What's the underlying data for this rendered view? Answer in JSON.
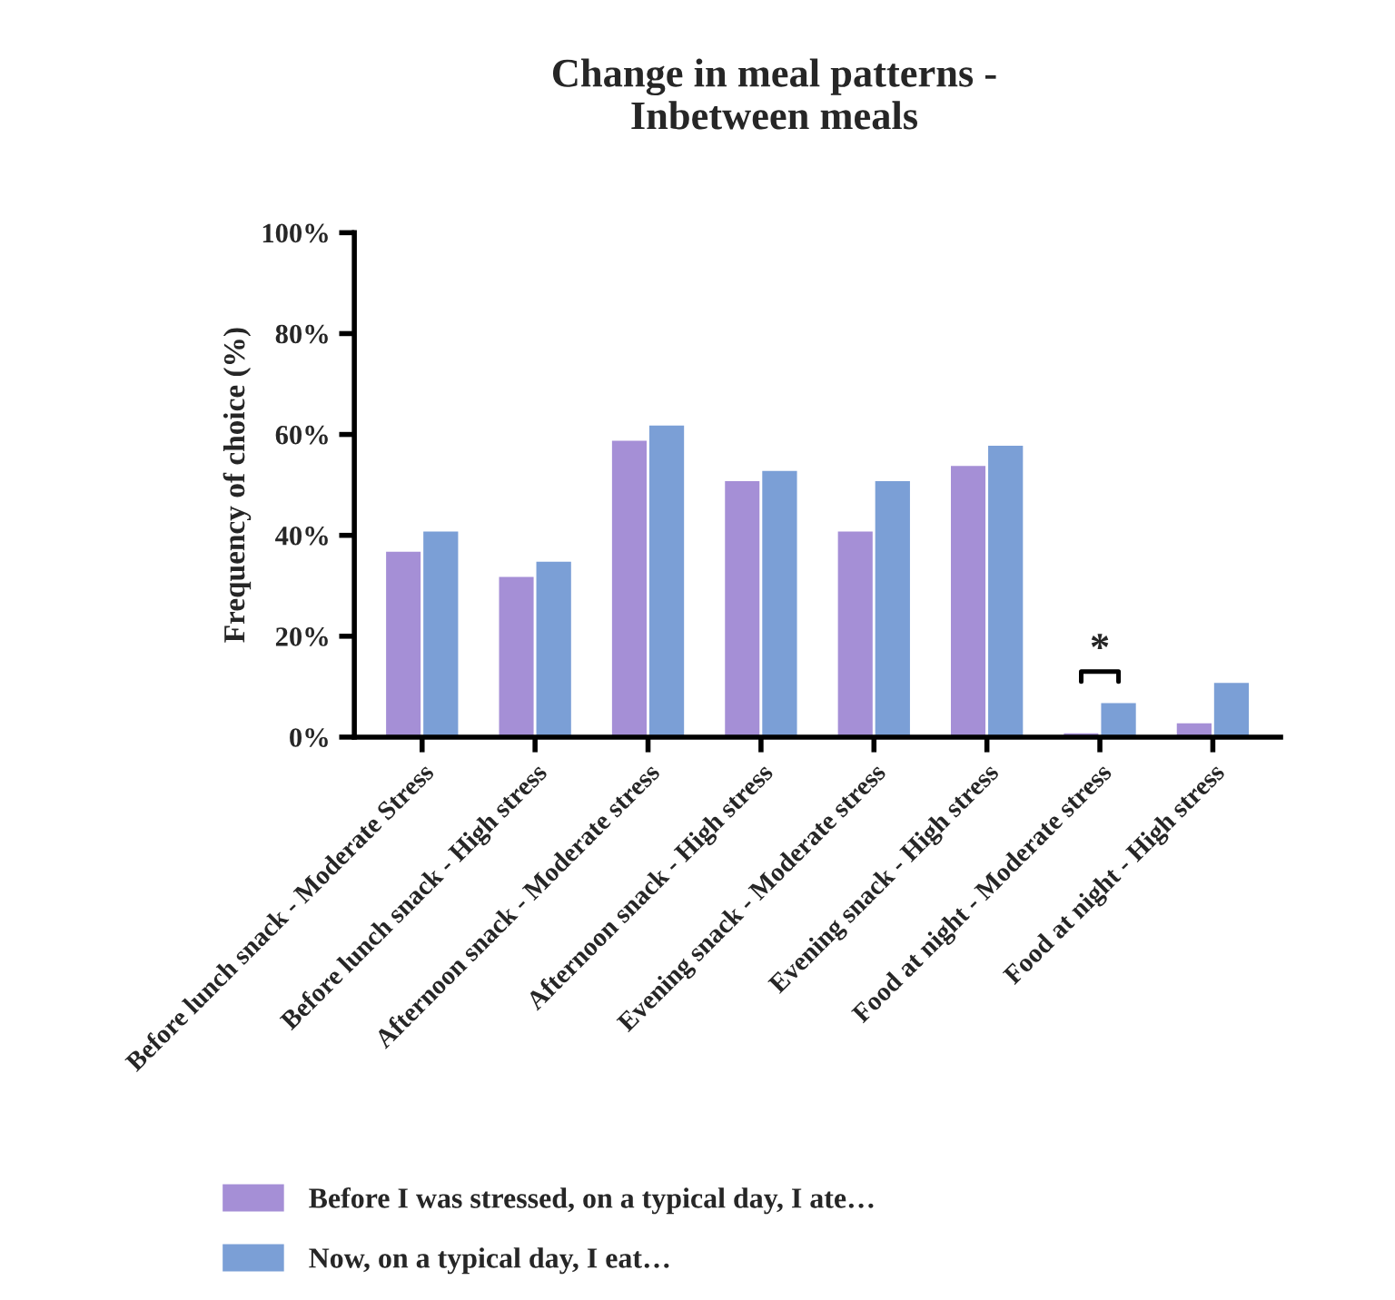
{
  "chart_data": {
    "type": "bar",
    "title": "Change in meal patterns -\nInbetween meals",
    "ylabel": "Frequency of choice (%)",
    "categories": [
      "Before lunch snack - Moderate Stress",
      "Before lunch snack - High stress",
      "Afternoon snack - Moderate stress",
      "Afternoon snack - High stress",
      "Evening snack - Moderate stress",
      "Evening snack - High stress",
      "Food at night - Moderate stress",
      "Food at night - High stress"
    ],
    "series": [
      {
        "name": "Before I was stressed, on a typical day, I ate…",
        "color": "#a58fd6",
        "values": [
          37,
          32,
          59,
          51,
          41,
          54,
          1,
          3
        ]
      },
      {
        "name": "Now, on a typical day, I eat…",
        "color": "#7b9fd6",
        "values": [
          41,
          35,
          62,
          53,
          51,
          58,
          7,
          11
        ]
      }
    ],
    "ylim": [
      0,
      100
    ],
    "yticks": [
      {
        "value": 0,
        "label": "0%"
      },
      {
        "value": 20,
        "label": "20%"
      },
      {
        "value": 40,
        "label": "40%"
      },
      {
        "value": 60,
        "label": "60%"
      },
      {
        "value": 80,
        "label": "80%"
      },
      {
        "value": 100,
        "label": "100%"
      }
    ],
    "annotations": [
      "*"
    ],
    "grid": false,
    "legend": "bottom"
  }
}
